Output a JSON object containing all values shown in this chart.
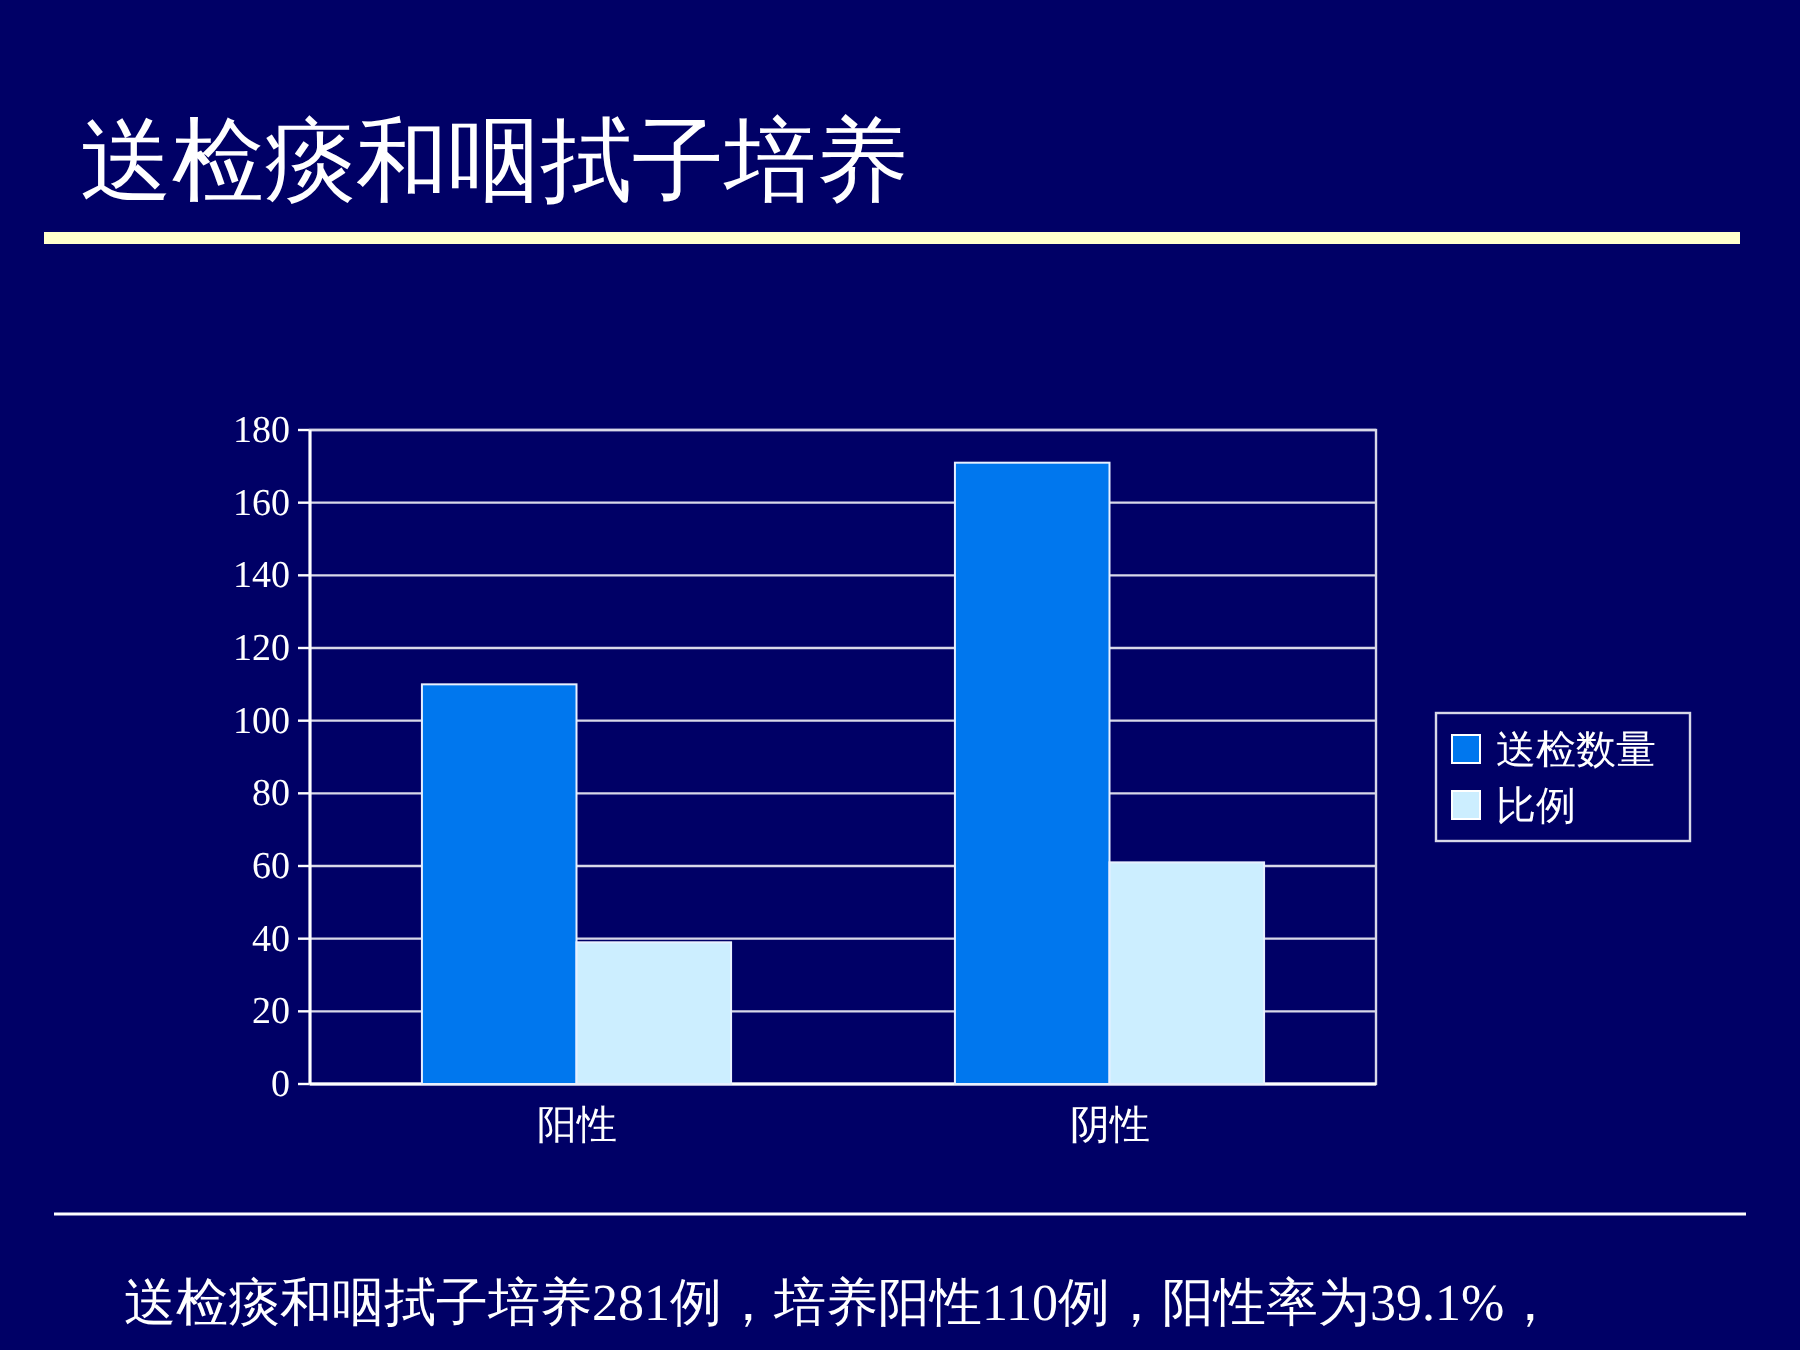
{
  "chart_data": {
    "type": "bar",
    "title": "送检痰和咽拭子培养",
    "categories": [
      "阳性",
      "阴性"
    ],
    "series": [
      {
        "name": "送检数量",
        "color": "#0077ee",
        "values": [
          110,
          171
        ]
      },
      {
        "name": "比例",
        "color": "#cceeff",
        "values": [
          39,
          61
        ]
      }
    ],
    "ylim": [
      0,
      180
    ],
    "yticks": [
      0,
      20,
      40,
      60,
      80,
      100,
      120,
      140,
      160,
      180
    ],
    "grid": "y",
    "legend": "right",
    "annotations": [
      "送检痰和咽拭子培养281例，培养阳性110例，阳性率为39.1%，"
    ]
  }
}
